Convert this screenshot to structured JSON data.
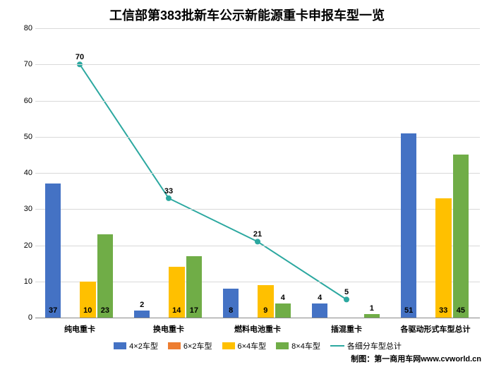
{
  "chart": {
    "type": "bar+line",
    "title": "工信部第383批新车公示新能源重卡申报车型一览",
    "title_fontsize": 18,
    "credit": "制图：第一商用车网www.cvworld.cn",
    "background_color": "#ffffff",
    "grid_color": "#d9d9d9",
    "axis_font_color": "#000000",
    "ylim": [
      0,
      80
    ],
    "ytick_step": 10,
    "yticks": [
      0,
      10,
      20,
      30,
      40,
      50,
      60,
      70,
      80
    ],
    "categories": [
      "纯电重卡",
      "换电重卡",
      "燃料电池重卡",
      "插混重卡",
      "各驱动形式车型总计"
    ],
    "series": [
      {
        "name": "4×2车型",
        "color": "#4472c4",
        "values": [
          37,
          2,
          8,
          4,
          51
        ]
      },
      {
        "name": "6×2车型",
        "color": "#ed7d31",
        "values": [
          0,
          0,
          0,
          0,
          0
        ]
      },
      {
        "name": "6×4车型",
        "color": "#ffc000",
        "values": [
          10,
          14,
          9,
          0,
          33
        ]
      },
      {
        "name": "8×4车型",
        "color": "#70ad47",
        "values": [
          23,
          17,
          4,
          1,
          45
        ]
      }
    ],
    "line_series": {
      "name": "各细分车型总计",
      "color": "#2ca8a0",
      "values": [
        70,
        33,
        21,
        5
      ],
      "marker": "circle",
      "marker_size": 4,
      "line_width": 2
    },
    "bar_group_width": 0.78,
    "bar_label_threshold": 6,
    "label_fontsize": 11,
    "category_fontsize": 11
  }
}
